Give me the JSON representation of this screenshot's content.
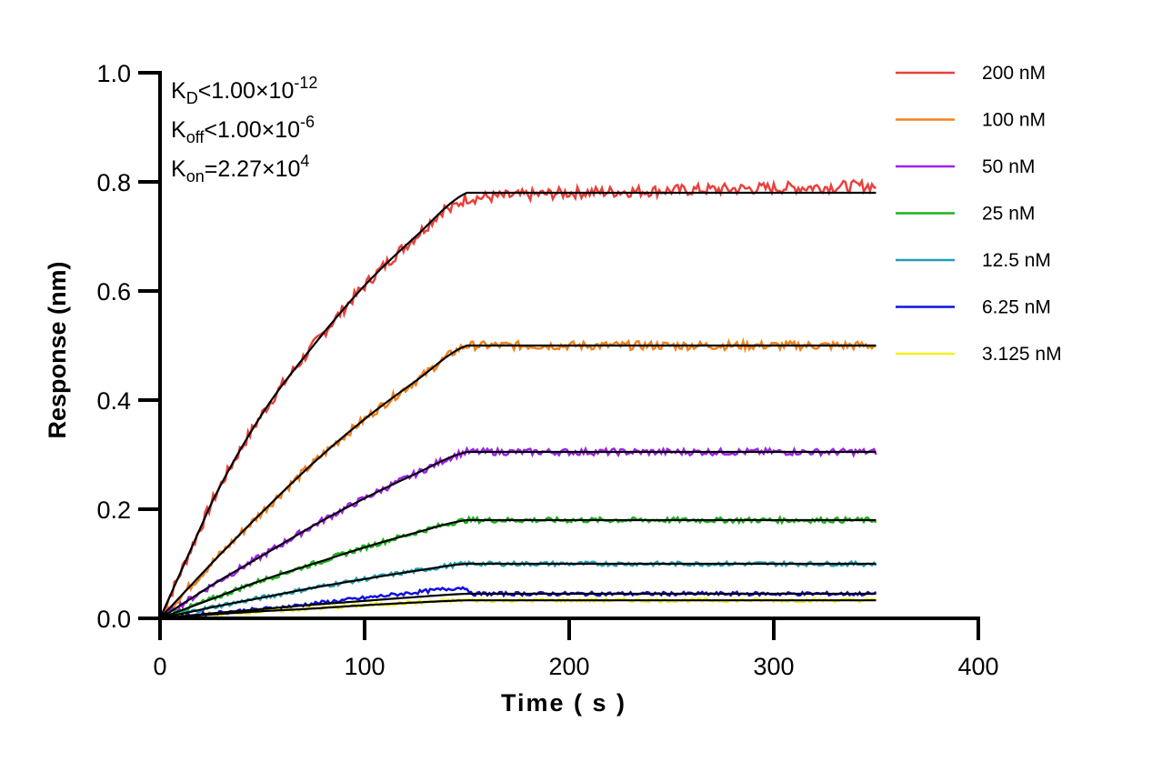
{
  "chart_data": {
    "type": "line",
    "xlabel": "Time ( s )",
    "ylabel": "Response (nm)",
    "xlim": [
      0,
      400
    ],
    "ylim": [
      0,
      1.0
    ],
    "xticks": [
      "0",
      "100",
      "200",
      "300",
      "400"
    ],
    "yticks": [
      "0.0",
      "0.2",
      "0.4",
      "0.6",
      "0.8",
      "1.0"
    ],
    "grid": false,
    "legend_position": "top-right",
    "annotations": {
      "kd": {
        "sym": "K",
        "sub": "D",
        "rel": "<1.00×10",
        "sup": "-12"
      },
      "koff": {
        "sym": "K",
        "sub": "off",
        "rel": "<1.00×10",
        "sup": "-6"
      },
      "kon": {
        "sym": "K",
        "sub": "on",
        "rel": "=2.27×10",
        "sup": "4"
      }
    },
    "fit_color": "#000000",
    "x": [
      0,
      25,
      50,
      75,
      100,
      125,
      150,
      200,
      250,
      300,
      350
    ],
    "series": [
      {
        "name": "200 nM",
        "color": "#e8413c",
        "values": [
          0,
          0.21,
          0.375,
          0.5,
          0.61,
          0.7,
          0.78,
          0.78,
          0.78,
          0.78,
          0.78
        ]
      },
      {
        "name": "100 nM",
        "color": "#f0821e",
        "values": [
          0,
          0.1,
          0.195,
          0.285,
          0.365,
          0.435,
          0.5,
          0.5,
          0.5,
          0.5,
          0.5
        ]
      },
      {
        "name": "50 nM",
        "color": "#a020f0",
        "values": [
          0,
          0.06,
          0.115,
          0.17,
          0.22,
          0.265,
          0.305,
          0.305,
          0.305,
          0.305,
          0.305
        ]
      },
      {
        "name": "25 nM",
        "color": "#1cb41c",
        "values": [
          0,
          0.035,
          0.07,
          0.1,
          0.13,
          0.157,
          0.18,
          0.18,
          0.18,
          0.18,
          0.18
        ]
      },
      {
        "name": "12.5 nM",
        "color": "#1fa0b4",
        "values": [
          0,
          0.02,
          0.038,
          0.056,
          0.072,
          0.087,
          0.1,
          0.1,
          0.1,
          0.1,
          0.1
        ]
      },
      {
        "name": "6.25 nM",
        "color": "#1010e0",
        "values": [
          0,
          0.009,
          0.017,
          0.025,
          0.032,
          0.039,
          0.045,
          0.045,
          0.045,
          0.045,
          0.045
        ]
      },
      {
        "name": "3.125 nM",
        "color": "#f0f020",
        "values": [
          0,
          0.007,
          0.013,
          0.018,
          0.024,
          0.029,
          0.033,
          0.033,
          0.033,
          0.033,
          0.033
        ]
      }
    ]
  }
}
